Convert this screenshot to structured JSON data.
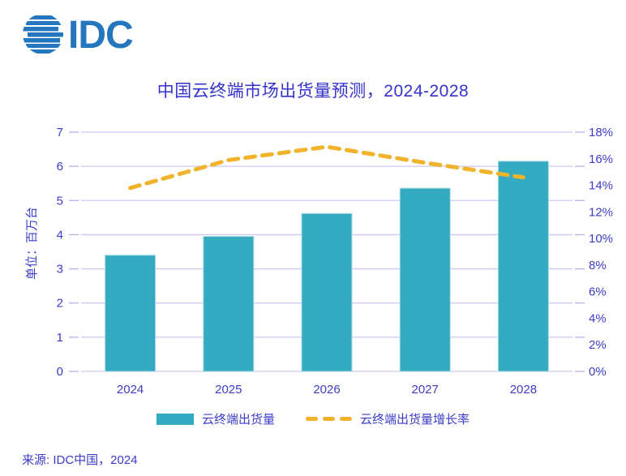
{
  "logo": {
    "text": "IDC",
    "color": "#2477be"
  },
  "title": "中国云终端市场出货量预测，2024-2028",
  "source": "来源: IDC中国，2024",
  "chart_data": {
    "type": "bar",
    "title": "中国云终端市场出货量预测，2024-2028",
    "categories": [
      "2024",
      "2025",
      "2026",
      "2027",
      "2028"
    ],
    "series": [
      {
        "name": "云终端出货量",
        "type": "bar",
        "axis": "left",
        "values": [
          3.4,
          3.95,
          4.62,
          5.36,
          6.15
        ],
        "color": "#34abc0"
      },
      {
        "name": "云终端出货量增长率",
        "type": "dashed-line",
        "axis": "right",
        "values": [
          13.8,
          15.9,
          16.9,
          15.7,
          14.6
        ],
        "unit": "%",
        "color": "#f1b32b"
      }
    ],
    "left_axis": {
      "label": "单位：百万台",
      "min": 0,
      "max": 7,
      "step": 1,
      "ticks": [
        "0",
        "1",
        "2",
        "3",
        "4",
        "5",
        "6",
        "7"
      ]
    },
    "right_axis": {
      "min": 0,
      "max": 18,
      "step": 2,
      "ticks": [
        "0%",
        "2%",
        "4%",
        "6%",
        "8%",
        "10%",
        "12%",
        "14%",
        "16%",
        "18%"
      ]
    },
    "grid": "horizontal",
    "legend_position": "bottom",
    "colors": {
      "grid": "#c9c9f2",
      "axis_text": "#3c3cc8",
      "title_text": "#3333cc"
    }
  }
}
